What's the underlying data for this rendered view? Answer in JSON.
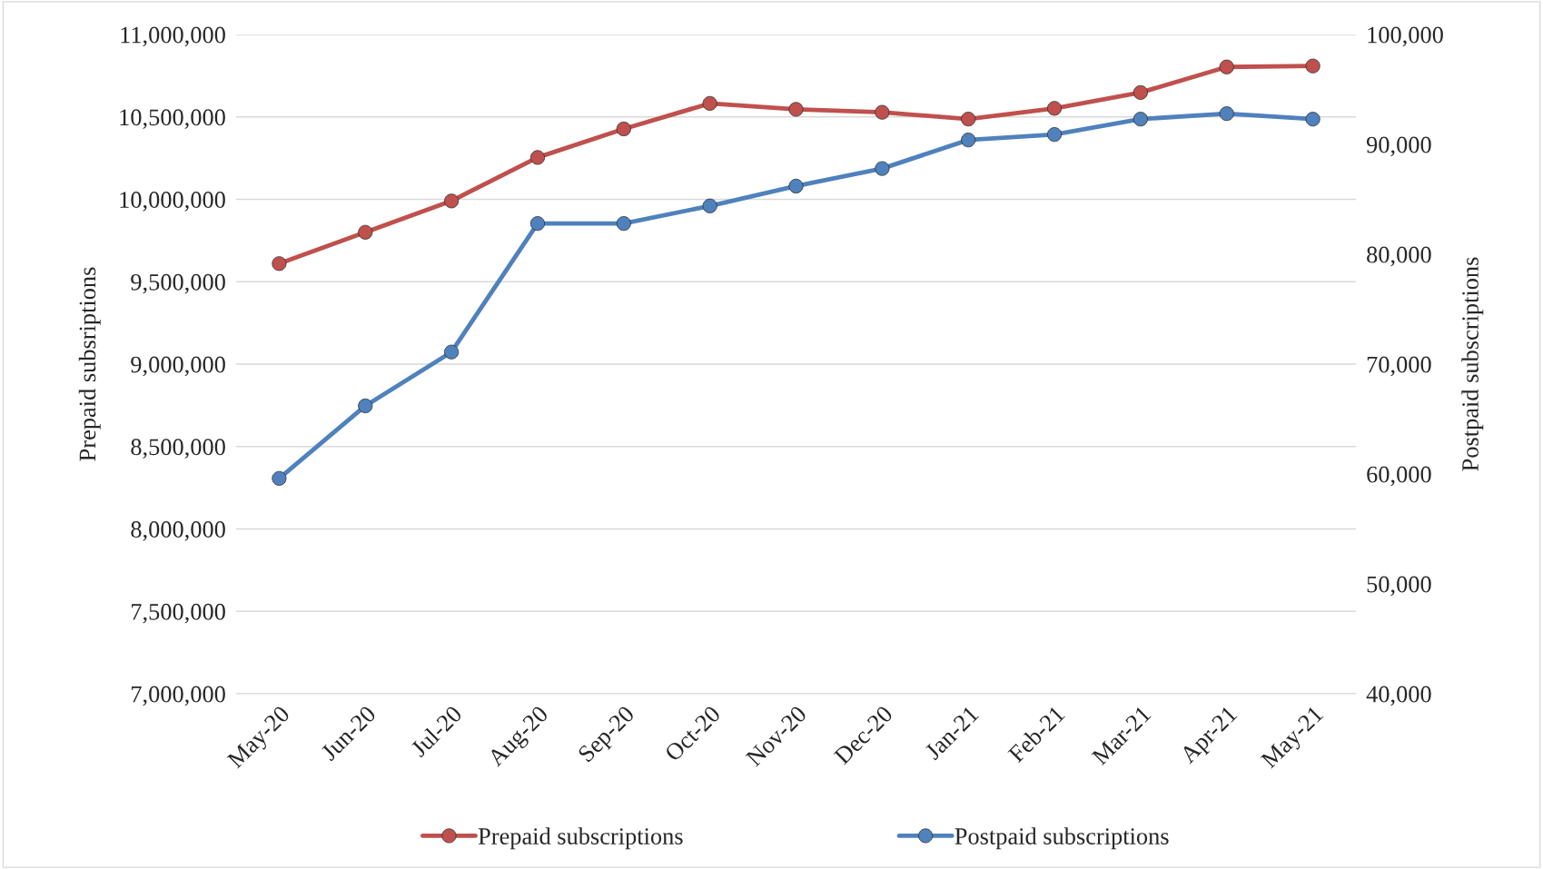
{
  "chart_data": {
    "type": "line",
    "categories": [
      "May-20",
      "Jun-20",
      "Jul-20",
      "Aug-20",
      "Sep-20",
      "Oct-20",
      "Nov-20",
      "Dec-20",
      "Jan-21",
      "Feb-21",
      "Mar-21",
      "Apr-21",
      "May-21"
    ],
    "series": [
      {
        "name": "Prepaid subscriptions",
        "color": "#c0504d",
        "values": [
          9610000,
          9800000,
          9990000,
          10254000,
          10427000,
          10582000,
          10546000,
          10528000,
          10487000,
          10552000,
          10648000,
          10803000,
          10809000
        ]
      },
      {
        "name": "Postpaid subscriptions",
        "color": "#4f81bd",
        "axis": "y2",
        "values": [
          59600,
          66200,
          71100,
          82800,
          82800,
          84400,
          86200,
          87800,
          90400,
          90900,
          92300,
          92800,
          92300
        ]
      }
    ],
    "ylabel": "Prepaid subsriptions",
    "y2label": "Postpaid subscriptions",
    "ylim": [
      7000000,
      11000000
    ],
    "yticks": [
      {
        "value": 7000000,
        "label": "7,000,000"
      },
      {
        "value": 7500000,
        "label": "7,500,000"
      },
      {
        "value": 8000000,
        "label": "8,000,000"
      },
      {
        "value": 8500000,
        "label": "8,500,000"
      },
      {
        "value": 9000000,
        "label": "9,000,000"
      },
      {
        "value": 9500000,
        "label": "9,500,000"
      },
      {
        "value": 10000000,
        "label": "10,000,000"
      },
      {
        "value": 10500000,
        "label": "10,500,000"
      },
      {
        "value": 11000000,
        "label": "11,000,000"
      }
    ],
    "y2lim": [
      40000,
      100000
    ],
    "y2ticks": [
      {
        "value": 40000,
        "label": "40,000"
      },
      {
        "value": 50000,
        "label": "50,000"
      },
      {
        "value": 60000,
        "label": "60,000"
      },
      {
        "value": 70000,
        "label": "70,000"
      },
      {
        "value": 80000,
        "label": "80,000"
      },
      {
        "value": 90000,
        "label": "90,000"
      },
      {
        "value": 100000,
        "label": "100,000"
      }
    ],
    "grid": "y",
    "legend": "bottom",
    "marker": "circle",
    "line_style": "solid"
  }
}
